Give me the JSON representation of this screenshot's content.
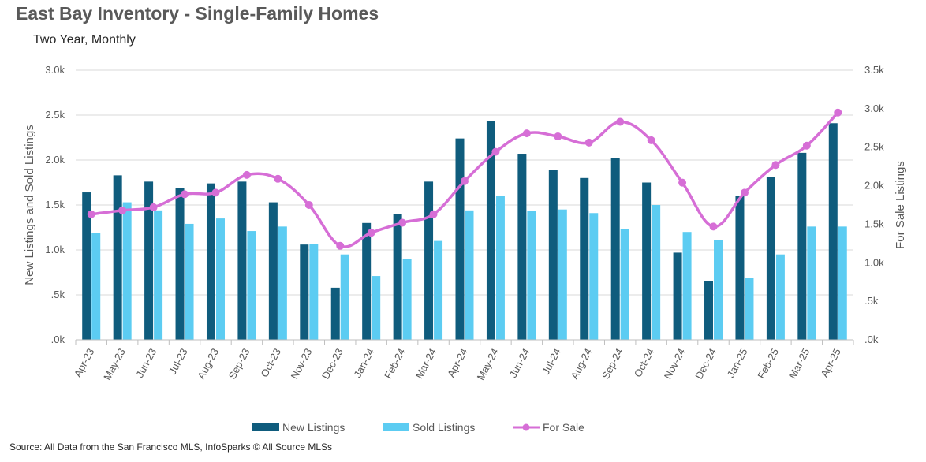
{
  "header": {
    "title": "East Bay Inventory - Single-Family Homes",
    "subtitle": "Two Year, Monthly"
  },
  "footer": {
    "source": "Source: All Data from the San Francisco MLS, InfoSparks © All Source MLSs"
  },
  "colors": {
    "new_listings": "#0f5c7d",
    "sold_listings": "#5cccf2",
    "for_sale": "#d66ed6",
    "gridline": "#d9d9d9"
  },
  "chart_data": {
    "type": "bar",
    "categories": [
      "Apr-23",
      "May-23",
      "Jun-23",
      "Jul-23",
      "Aug-23",
      "Sep-23",
      "Oct-23",
      "Nov-23",
      "Dec-23",
      "Jan-24",
      "Feb-24",
      "Mar-24",
      "Apr-24",
      "May-24",
      "Jun-24",
      "Jul-24",
      "Aug-24",
      "Sep-24",
      "Oct-24",
      "Nov-24",
      "Dec-24",
      "Jan-25",
      "Feb-25",
      "Mar-25",
      "Apr-25"
    ],
    "series": [
      {
        "name": "New Listings",
        "type": "bar",
        "axis": "left",
        "values": [
          1640,
          1830,
          1760,
          1690,
          1740,
          1760,
          1530,
          1060,
          580,
          1300,
          1400,
          1760,
          2240,
          2430,
          2070,
          1890,
          1800,
          2020,
          1750,
          970,
          650,
          1600,
          1810,
          2080,
          2410
        ]
      },
      {
        "name": "Sold Listings",
        "type": "bar",
        "axis": "left",
        "values": [
          1190,
          1530,
          1440,
          1290,
          1350,
          1210,
          1260,
          1070,
          950,
          710,
          900,
          1100,
          1440,
          1600,
          1430,
          1450,
          1410,
          1230,
          1500,
          1200,
          1110,
          690,
          950,
          1260,
          1260
        ]
      },
      {
        "name": "For Sale",
        "type": "line",
        "axis": "right",
        "values": [
          1630,
          1680,
          1720,
          1890,
          1910,
          2140,
          2090,
          1750,
          1220,
          1390,
          1520,
          1630,
          2060,
          2440,
          2680,
          2640,
          2560,
          2830,
          2590,
          2040,
          1470,
          1910,
          2270,
          2520,
          2950
        ]
      }
    ],
    "ylabel_left": "New Listings and Sold Listings",
    "ylabel_right": "For Sale Listings",
    "ylim_left": [
      0,
      3000
    ],
    "ylim_right": [
      0,
      3500
    ],
    "yticks_left": [
      ".0k",
      ".5k",
      "1.0k",
      "1.5k",
      "2.0k",
      "2.5k",
      "3.0k"
    ],
    "yticks_right": [
      ".0k",
      ".5k",
      "1.0k",
      "1.5k",
      "2.0k",
      "2.5k",
      "3.0k",
      "3.5k"
    ],
    "grid": true,
    "legend_position": "bottom"
  }
}
